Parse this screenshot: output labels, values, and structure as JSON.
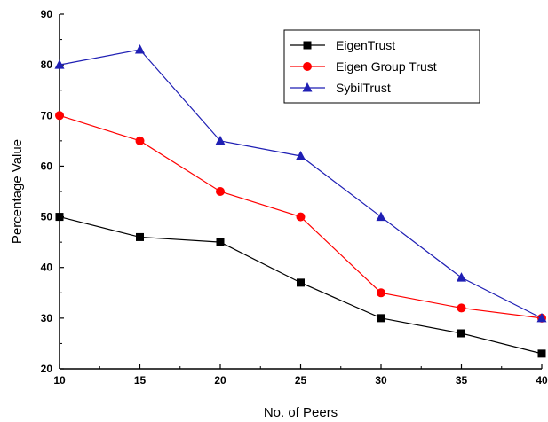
{
  "chart_data": {
    "type": "line",
    "title": "",
    "xlabel": "No. of Peers",
    "ylabel": "Percentage Value",
    "x": [
      10,
      15,
      20,
      25,
      30,
      35,
      40
    ],
    "x_ticks": [
      10,
      15,
      20,
      25,
      30,
      35,
      40
    ],
    "xlim": [
      10,
      40
    ],
    "y_ticks": [
      20,
      30,
      40,
      50,
      60,
      70,
      80,
      90
    ],
    "ylim": [
      20,
      90
    ],
    "grid": false,
    "legend_position": "top-right",
    "series": [
      {
        "name": "EigenTrust",
        "values": [
          50,
          46,
          45,
          37,
          30,
          27,
          23
        ],
        "color": "#000000",
        "marker": "square"
      },
      {
        "name": "Eigen Group Trust",
        "values": [
          70,
          65,
          55,
          50,
          35,
          32,
          30
        ],
        "color": "#ff0000",
        "marker": "circle"
      },
      {
        "name": "SybilTrust",
        "values": [
          80,
          83,
          65,
          62,
          50,
          38,
          30
        ],
        "color": "#1f1fb4",
        "marker": "triangle"
      }
    ]
  }
}
